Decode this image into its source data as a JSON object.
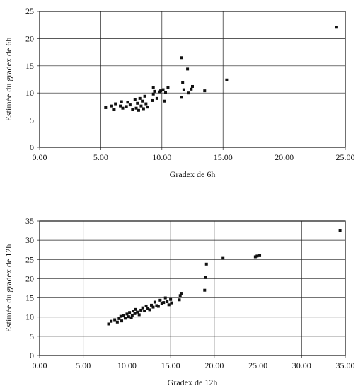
{
  "chart_data": [
    {
      "type": "scatter",
      "xlabel": "Gradex de 6h",
      "ylabel": "Estimée du gradex de 6h",
      "xlim": [
        0,
        25
      ],
      "ylim": [
        0,
        25
      ],
      "xticks": [
        "0.00",
        "5.00",
        "10.00",
        "15.00",
        "20.00",
        "25.00"
      ],
      "yticks": [
        "0",
        "5",
        "10",
        "15",
        "20",
        "25"
      ],
      "grid": true,
      "points": [
        [
          5.4,
          7.3
        ],
        [
          5.9,
          7.6
        ],
        [
          6.1,
          6.9
        ],
        [
          6.2,
          8.0
        ],
        [
          6.6,
          7.6
        ],
        [
          6.7,
          8.4
        ],
        [
          6.8,
          7.2
        ],
        [
          7.1,
          7.5
        ],
        [
          7.2,
          8.3
        ],
        [
          7.4,
          7.8
        ],
        [
          7.6,
          6.9
        ],
        [
          7.8,
          8.8
        ],
        [
          7.9,
          7.2
        ],
        [
          8.0,
          8.1
        ],
        [
          8.1,
          6.8
        ],
        [
          8.2,
          9.0
        ],
        [
          8.3,
          7.6
        ],
        [
          8.4,
          8.5
        ],
        [
          8.5,
          7.1
        ],
        [
          8.6,
          9.4
        ],
        [
          8.7,
          8.0
        ],
        [
          8.8,
          7.4
        ],
        [
          9.2,
          8.6
        ],
        [
          9.3,
          9.8
        ],
        [
          9.3,
          11.0
        ],
        [
          9.4,
          10.3
        ],
        [
          9.6,
          9.0
        ],
        [
          9.8,
          10.2
        ],
        [
          9.9,
          10.4
        ],
        [
          10.1,
          10.6
        ],
        [
          10.2,
          8.5
        ],
        [
          10.3,
          10.1
        ],
        [
          10.5,
          11.0
        ],
        [
          11.6,
          9.2
        ],
        [
          11.7,
          11.9
        ],
        [
          11.8,
          10.6
        ],
        [
          11.6,
          16.5
        ],
        [
          12.1,
          14.4
        ],
        [
          12.2,
          10.0
        ],
        [
          12.4,
          10.7
        ],
        [
          12.5,
          11.2
        ],
        [
          13.5,
          10.4
        ],
        [
          15.3,
          12.4
        ],
        [
          24.3,
          22.1
        ]
      ]
    },
    {
      "type": "scatter",
      "xlabel": "Gradex de 12h",
      "ylabel": "Estimée du gradex de 12h",
      "xlim": [
        0,
        35
      ],
      "ylim": [
        0,
        35
      ],
      "xticks": [
        "0.00",
        "5.00",
        "10.00",
        "15.00",
        "20.00",
        "25.00",
        "30.00",
        "35.00"
      ],
      "yticks": [
        "0",
        "5",
        "10",
        "15",
        "20",
        "25",
        "30",
        "35"
      ],
      "grid": true,
      "points": [
        [
          7.9,
          8.2
        ],
        [
          8.2,
          8.9
        ],
        [
          8.6,
          9.3
        ],
        [
          8.9,
          8.7
        ],
        [
          9.1,
          9.6
        ],
        [
          9.3,
          10.2
        ],
        [
          9.4,
          9.0
        ],
        [
          9.6,
          10.4
        ],
        [
          9.8,
          9.7
        ],
        [
          10.0,
          10.8
        ],
        [
          10.2,
          10.1
        ],
        [
          10.3,
          11.2
        ],
        [
          10.5,
          9.8
        ],
        [
          10.6,
          10.5
        ],
        [
          10.7,
          11.6
        ],
        [
          10.9,
          10.9
        ],
        [
          11.0,
          12.0
        ],
        [
          11.2,
          11.3
        ],
        [
          11.4,
          10.6
        ],
        [
          11.6,
          11.8
        ],
        [
          11.8,
          12.4
        ],
        [
          12.0,
          11.6
        ],
        [
          12.2,
          12.9
        ],
        [
          12.4,
          12.2
        ],
        [
          12.6,
          11.9
        ],
        [
          12.8,
          13.1
        ],
        [
          13.0,
          12.6
        ],
        [
          13.2,
          13.9
        ],
        [
          13.4,
          13.0
        ],
        [
          13.6,
          12.8
        ],
        [
          13.8,
          14.4
        ],
        [
          14.0,
          13.5
        ],
        [
          14.2,
          13.8
        ],
        [
          14.4,
          15.0
        ],
        [
          14.6,
          14.0
        ],
        [
          14.8,
          13.2
        ],
        [
          15.0,
          14.6
        ],
        [
          15.1,
          13.7
        ],
        [
          16.0,
          14.5
        ],
        [
          16.1,
          15.6
        ],
        [
          16.2,
          16.2
        ],
        [
          18.9,
          17.0
        ],
        [
          19.0,
          20.3
        ],
        [
          19.1,
          23.8
        ],
        [
          21.0,
          25.3
        ],
        [
          24.7,
          25.7
        ],
        [
          24.9,
          25.9
        ],
        [
          25.2,
          26.0
        ],
        [
          34.4,
          32.6
        ]
      ]
    }
  ]
}
